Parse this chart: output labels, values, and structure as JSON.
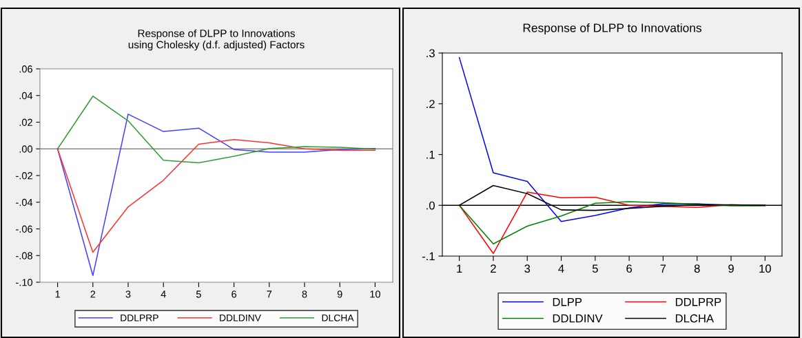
{
  "chart_data": [
    {
      "type": "line",
      "title": "Response of DLPP to Innovations\nusing Cholesky (d.f. adjusted) Factors",
      "x": [
        1,
        2,
        3,
        4,
        5,
        6,
        7,
        8,
        9,
        10
      ],
      "series": [
        {
          "name": "DDLPRP",
          "color": "#4040ff",
          "values": [
            0,
            -0.095,
            0.026,
            0.013,
            0.0155,
            -0.0005,
            -0.0025,
            -0.0025,
            -0.0005,
            0.0003
          ]
        },
        {
          "name": "DDLDINV",
          "color": "#ff3030",
          "values": [
            0,
            -0.0775,
            -0.0435,
            -0.0235,
            0.0035,
            0.007,
            0.0045,
            0.0,
            -0.001,
            -0.001
          ]
        },
        {
          "name": "DLCHA",
          "color": "#339933",
          "values": [
            0,
            0.0395,
            0.021,
            -0.0085,
            -0.0105,
            -0.0055,
            0.0003,
            0.0017,
            0.0012,
            -0.0002
          ]
        }
      ],
      "xlim": [
        0.5,
        10.5
      ],
      "xticks": [
        1,
        2,
        3,
        4,
        5,
        6,
        7,
        8,
        9,
        10
      ],
      "ylim": [
        -0.1,
        0.06
      ],
      "yticks": [
        {
          "value": -0.1,
          "label": "-.10"
        },
        {
          "value": -0.08,
          "label": "-.08"
        },
        {
          "value": -0.06,
          "label": "-.06"
        },
        {
          "value": -0.04,
          "label": "-.04"
        },
        {
          "value": -0.02,
          "label": "-.02"
        },
        {
          "value": 0,
          "label": ".00"
        },
        {
          "value": 0.02,
          "label": ".02"
        },
        {
          "value": 0.04,
          "label": ".04"
        },
        {
          "value": 0.06,
          "label": ".06"
        }
      ],
      "ref_lines": [
        {
          "axis": "y",
          "value": 0,
          "color": "#888888"
        }
      ],
      "grid": false,
      "legend": "bottom",
      "marker": "none",
      "line_style": "solid"
    },
    {
      "type": "line",
      "title": "Response of DLPP to Innovations",
      "x": [
        1,
        2,
        3,
        4,
        5,
        6,
        7,
        8,
        9,
        10
      ],
      "series": [
        {
          "name": "DLPP",
          "color": "#0000ff",
          "values": [
            0.291,
            0.064,
            0.047,
            -0.032,
            -0.02,
            -0.005,
            0.003,
            0.003,
            0.0,
            0.0
          ]
        },
        {
          "name": "DDLPRP",
          "color": "#ff0000",
          "values": [
            0,
            -0.095,
            0.026,
            0.015,
            0.016,
            0.0,
            -0.002,
            -0.004,
            0.001,
            0.0
          ]
        },
        {
          "name": "DDLDINV",
          "color": "#008000",
          "values": [
            0,
            -0.076,
            -0.041,
            -0.021,
            0.004,
            0.007,
            0.005,
            0.002,
            -0.001,
            -0.001
          ]
        },
        {
          "name": "DLCHA",
          "color": "#000000",
          "values": [
            0,
            0.039,
            0.023,
            -0.009,
            -0.01,
            -0.006,
            -0.002,
            0.001,
            0.001,
            0.0
          ]
        }
      ],
      "xlim": [
        0.5,
        10.5
      ],
      "xticks": [
        1,
        2,
        3,
        4,
        5,
        6,
        7,
        8,
        9,
        10
      ],
      "ylim": [
        -0.1,
        0.3
      ],
      "yticks": [
        {
          "value": -0.1,
          "label": "-.1"
        },
        {
          "value": 0,
          "label": ".0"
        },
        {
          "value": 0.1,
          "label": ".1"
        },
        {
          "value": 0.2,
          "label": ".2"
        },
        {
          "value": 0.3,
          "label": ".3"
        }
      ],
      "ref_lines": [
        {
          "axis": "y",
          "value": 0,
          "color": "#000000"
        }
      ],
      "grid": false,
      "legend": "bottom",
      "marker": "none",
      "line_style": "solid"
    }
  ]
}
